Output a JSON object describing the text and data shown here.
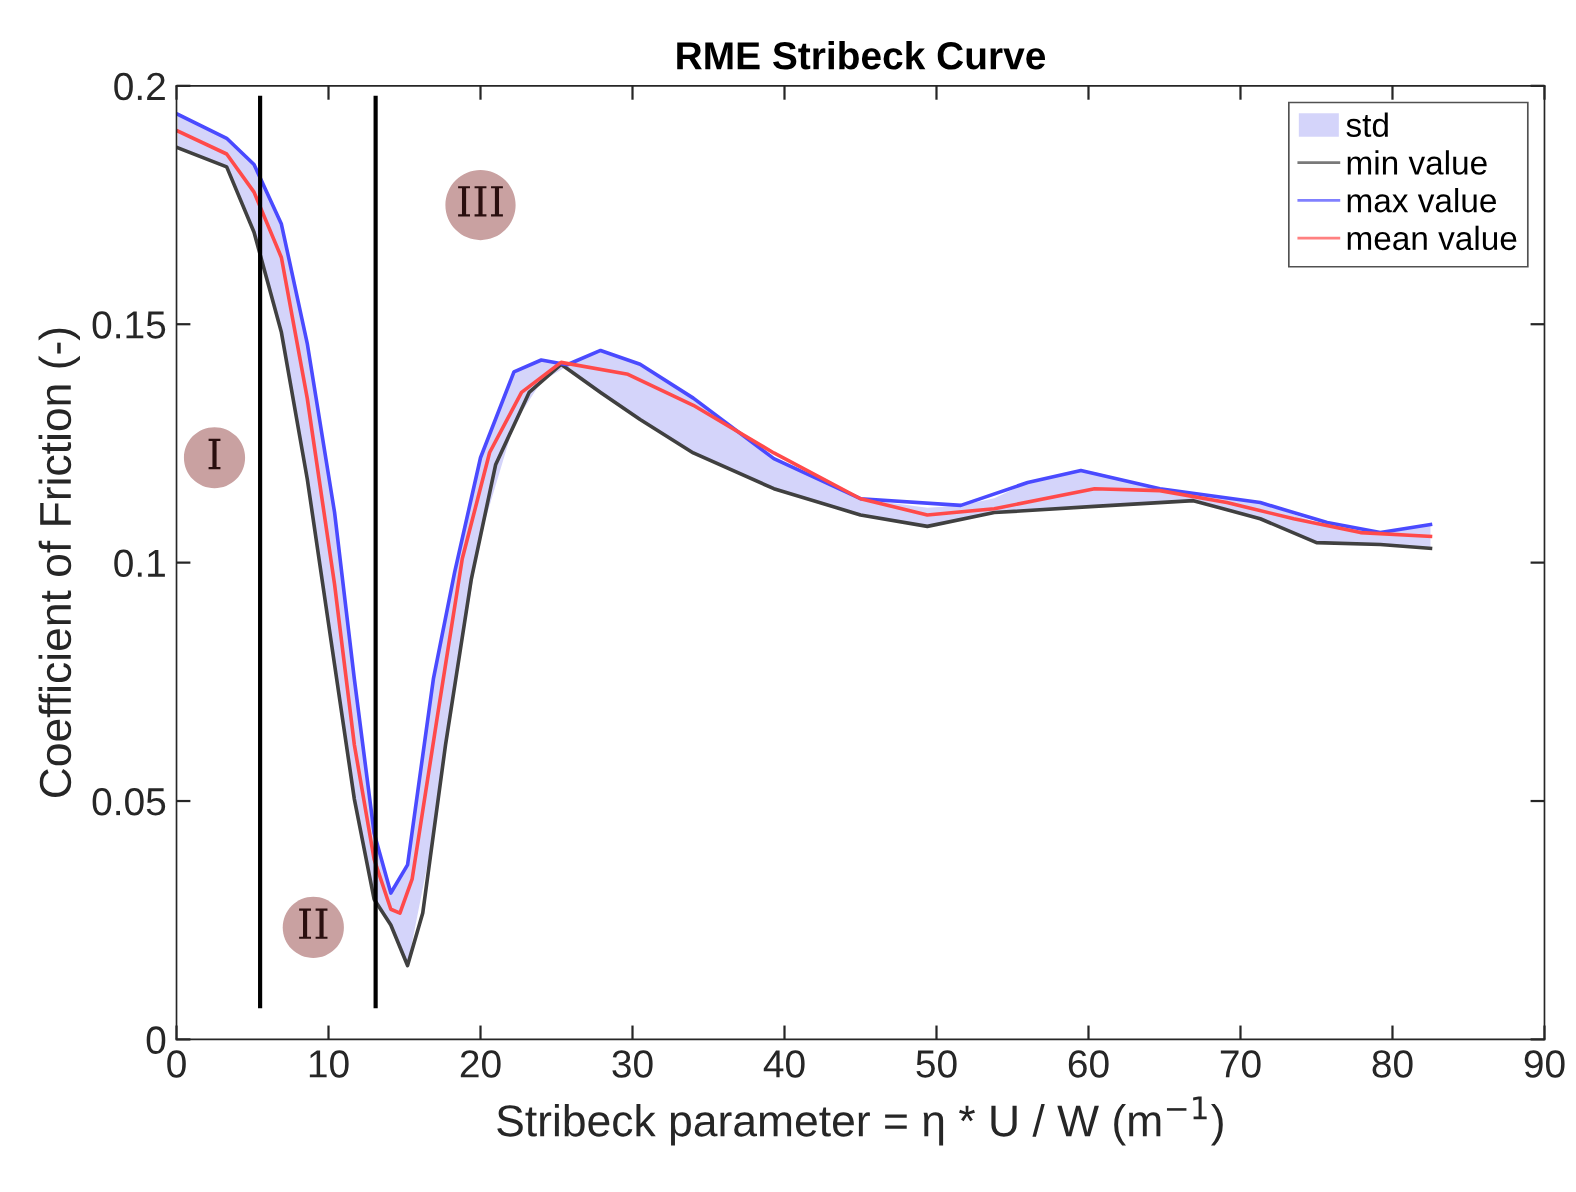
{
  "chart_data": {
    "type": "line",
    "title": "RME Stribeck Curve",
    "xlabel": "Stribeck parameter = η * U / W (m$^{−1}$)",
    "ylabel": "Coefficient of Friction (-)",
    "xlim": [
      0,
      90
    ],
    "xticks": [
      0,
      10,
      20,
      30,
      40,
      50,
      60,
      70,
      80,
      90
    ],
    "ylim": [
      0,
      0.2
    ],
    "yticks": [
      0,
      0.05,
      0.1,
      0.15,
      0.2
    ],
    "grid": false,
    "legend": "top right",
    "line_style": "solid",
    "marker": "none",
    "annotations": [
      {
        "text": "I",
        "x": 2.5,
        "y": 0.122
      },
      {
        "text": "II",
        "x": 9,
        "y": 0.0235
      },
      {
        "text": "III",
        "x": 20,
        "y": 0.175
      }
    ],
    "series": [
      {
        "name": "std",
        "type": "area",
        "color": "#d4d4fa",
        "x": [
          0.1,
          3.3,
          5.1,
          6.9,
          8.6,
          10.4,
          11.7,
          13.0,
          14.1,
          15.2,
          16.9,
          18.3,
          20.0,
          22.2,
          24.0,
          25.7,
          27.9,
          30.5,
          34.0,
          39.3,
          45.0,
          49.4,
          51.6,
          53.8,
          56.0,
          59.5,
          60.4,
          64.7,
          66.9,
          71.3,
          75.0,
          79.2,
          82.5
        ],
        "lower": [
          0.187,
          0.183,
          0.1693,
          0.1483,
          0.1176,
          0.0786,
          0.0504,
          0.0294,
          0.024,
          0.0155,
          0.043,
          0.074,
          0.1056,
          0.129,
          0.138,
          0.1412,
          0.1357,
          0.13,
          0.123,
          0.1155,
          0.11,
          0.1076,
          0.109,
          0.1105,
          0.111,
          0.1115,
          0.1118,
          0.1125,
          0.113,
          0.1092,
          0.1042,
          0.1038,
          0.103
        ],
        "upper": [
          0.194,
          0.189,
          0.1835,
          0.171,
          0.146,
          0.1105,
          0.0756,
          0.0433,
          0.0307,
          0.0366,
          0.0756,
          0.098,
          0.122,
          0.14,
          0.1425,
          0.1415,
          0.1445,
          0.1416,
          0.1345,
          0.1218,
          0.1134,
          0.1115,
          0.112,
          0.1135,
          0.1168,
          0.1193,
          0.119,
          0.1155,
          0.1145,
          0.1126,
          0.1084,
          0.1063,
          0.108
        ],
        "values": [
          null,
          null,
          null,
          null,
          null,
          null,
          null,
          null,
          null,
          null,
          null,
          null,
          null,
          null,
          null,
          null,
          null,
          null,
          null,
          null,
          null,
          null,
          null,
          null,
          null,
          null,
          null,
          null,
          null,
          null,
          null,
          null,
          null
        ]
      },
      {
        "name": "min value",
        "type": "line",
        "color": "#404040",
        "x": [
          0.1,
          3.3,
          5.1,
          6.9,
          8.6,
          10.4,
          11.7,
          13.0,
          14.1,
          15.2,
          16.2,
          17.7,
          19.4,
          21.0,
          23.2,
          25.3,
          27.9,
          30.5,
          34.0,
          39.3,
          45.0,
          49.4,
          53.8,
          60.4,
          66.9,
          71.3,
          75.0,
          79.2,
          82.5
        ],
        "values": [
          0.187,
          0.183,
          0.1693,
          0.1483,
          0.1176,
          0.0786,
          0.0504,
          0.0294,
          0.024,
          0.0155,
          0.0265,
          0.0618,
          0.0966,
          0.1206,
          0.1357,
          0.1416,
          0.1357,
          0.13,
          0.123,
          0.1155,
          0.11,
          0.1076,
          0.1105,
          0.1118,
          0.113,
          0.1092,
          0.1042,
          0.1038,
          0.103
        ]
      },
      {
        "name": "max value",
        "type": "line",
        "color": "#4a4aff",
        "x": [
          0.1,
          3.3,
          5.1,
          6.9,
          8.6,
          10.4,
          11.7,
          13.0,
          14.1,
          15.2,
          16.9,
          18.3,
          20.0,
          22.2,
          24.0,
          25.7,
          27.9,
          30.5,
          34.0,
          39.3,
          45.0,
          51.6,
          56.0,
          59.5,
          64.7,
          71.3,
          75.7,
          79.2,
          82.5
        ],
        "values": [
          0.194,
          0.189,
          0.1835,
          0.171,
          0.146,
          0.1105,
          0.0756,
          0.0433,
          0.0307,
          0.0366,
          0.0756,
          0.098,
          0.122,
          0.14,
          0.1425,
          0.1415,
          0.1445,
          0.1416,
          0.1345,
          0.1218,
          0.1134,
          0.112,
          0.1168,
          0.1193,
          0.1155,
          0.1126,
          0.1084,
          0.1063,
          0.108
        ]
      },
      {
        "name": "mean value",
        "type": "line",
        "color": "#ff4a4a",
        "x": [
          0.1,
          3.3,
          5.1,
          6.9,
          8.6,
          10.4,
          11.7,
          13.0,
          14.1,
          14.7,
          15.5,
          17.2,
          18.8,
          20.6,
          22.7,
          25.3,
          29.7,
          34.0,
          39.3,
          45.0,
          49.4,
          53.8,
          60.4,
          64.7,
          69.1,
          73.5,
          77.9,
          82.5
        ],
        "values": [
          0.1905,
          0.1857,
          0.1777,
          0.164,
          0.1345,
          0.0954,
          0.0618,
          0.0378,
          0.0273,
          0.0265,
          0.0336,
          0.0685,
          0.1008,
          0.1231,
          0.1357,
          0.142,
          0.1395,
          0.133,
          0.123,
          0.1134,
          0.11,
          0.1113,
          0.1155,
          0.1151,
          0.1126,
          0.1092,
          0.1063,
          0.1055
        ]
      },
      {
        "type": "line",
        "color": "#000000",
        "x": [
          5.5,
          5.5
        ],
        "values": [
          0.007,
          0.1975
        ]
      },
      {
        "type": "line",
        "color": "#000000",
        "x": [
          13.1,
          13.1
        ],
        "values": [
          0.007,
          0.1975
        ]
      }
    ]
  }
}
